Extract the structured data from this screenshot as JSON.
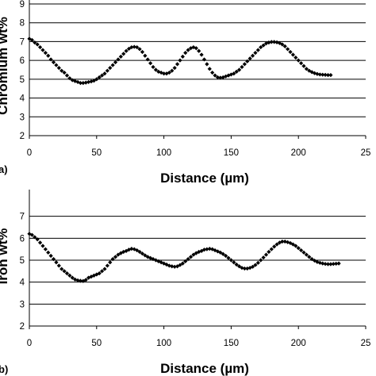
{
  "chart_data": [
    {
      "type": "scatter",
      "panel_label": "a)",
      "ylabel": "Chromium wt%",
      "xlabel": "Distance (µm)",
      "xlim": [
        0,
        250
      ],
      "ylim": [
        2,
        9
      ],
      "xticks": [
        "0",
        "50",
        "100",
        "150",
        "200",
        "25"
      ],
      "yticks": [
        "2",
        "3",
        "4",
        "5",
        "6",
        "7",
        "8",
        "9"
      ],
      "grid": true,
      "series": [
        {
          "marker": "diamond",
          "color": "#000000",
          "x": [
            0,
            2,
            4,
            6,
            8,
            10,
            12,
            14,
            16,
            18,
            20,
            22,
            24,
            26,
            28,
            30,
            32,
            34,
            36,
            38,
            40,
            42,
            44,
            46,
            48,
            50,
            52,
            54,
            56,
            58,
            60,
            62,
            64,
            66,
            68,
            70,
            72,
            74,
            76,
            78,
            80,
            82,
            84,
            86,
            88,
            90,
            92,
            94,
            96,
            98,
            100,
            102,
            104,
            106,
            108,
            110,
            112,
            114,
            116,
            118,
            120,
            122,
            124,
            126,
            128,
            130,
            132,
            134,
            136,
            138,
            140,
            142,
            144,
            146,
            148,
            150,
            152,
            154,
            156,
            158,
            160,
            162,
            164,
            166,
            168,
            170,
            172,
            174,
            176,
            178,
            180,
            182,
            184,
            186,
            188,
            190,
            192,
            194,
            196,
            198,
            200,
            202,
            204,
            206,
            208,
            210,
            212,
            214,
            216,
            218,
            220,
            222,
            224
          ],
          "y": [
            7.15,
            7.08,
            6.95,
            6.85,
            6.7,
            6.55,
            6.4,
            6.25,
            6.05,
            5.9,
            5.75,
            5.6,
            5.45,
            5.35,
            5.2,
            5.05,
            4.95,
            4.9,
            4.85,
            4.8,
            4.8,
            4.82,
            4.85,
            4.88,
            4.92,
            5.0,
            5.1,
            5.2,
            5.3,
            5.45,
            5.6,
            5.75,
            5.9,
            6.05,
            6.2,
            6.35,
            6.5,
            6.62,
            6.7,
            6.72,
            6.7,
            6.6,
            6.45,
            6.25,
            6.05,
            5.85,
            5.65,
            5.5,
            5.4,
            5.35,
            5.3,
            5.3,
            5.35,
            5.45,
            5.6,
            5.8,
            6.0,
            6.2,
            6.4,
            6.55,
            6.65,
            6.7,
            6.65,
            6.5,
            6.3,
            6.05,
            5.8,
            5.55,
            5.35,
            5.2,
            5.1,
            5.08,
            5.1,
            5.15,
            5.2,
            5.25,
            5.3,
            5.4,
            5.5,
            5.65,
            5.8,
            5.95,
            6.1,
            6.25,
            6.4,
            6.55,
            6.7,
            6.8,
            6.9,
            6.95,
            6.98,
            6.98,
            6.96,
            6.92,
            6.85,
            6.75,
            6.6,
            6.45,
            6.3,
            6.15,
            6.0,
            5.85,
            5.7,
            5.55,
            5.45,
            5.38,
            5.32,
            5.28,
            5.25,
            5.24,
            5.23,
            5.22,
            5.22
          ]
        }
      ]
    },
    {
      "type": "scatter",
      "panel_label": "b)",
      "ylabel": "Iron wt%",
      "xlabel": "Distance (µm)",
      "xlim": [
        0,
        250
      ],
      "ylim": [
        2,
        8
      ],
      "xticks": [
        "0",
        "50",
        "100",
        "150",
        "200",
        "25"
      ],
      "yticks": [
        "2",
        "3",
        "4",
        "5",
        "6",
        "7"
      ],
      "grid": true,
      "series": [
        {
          "marker": "diamond",
          "color": "#000000",
          "x": [
            0,
            2,
            4,
            6,
            8,
            10,
            12,
            14,
            16,
            18,
            20,
            22,
            24,
            26,
            28,
            30,
            32,
            34,
            36,
            38,
            40,
            42,
            44,
            46,
            48,
            50,
            52,
            54,
            56,
            58,
            60,
            62,
            64,
            66,
            68,
            70,
            72,
            74,
            76,
            78,
            80,
            82,
            84,
            86,
            88,
            90,
            92,
            94,
            96,
            98,
            100,
            102,
            104,
            106,
            108,
            110,
            112,
            114,
            116,
            118,
            120,
            122,
            124,
            126,
            128,
            130,
            132,
            134,
            136,
            138,
            140,
            142,
            144,
            146,
            148,
            150,
            152,
            154,
            156,
            158,
            160,
            162,
            164,
            166,
            168,
            170,
            172,
            174,
            176,
            178,
            180,
            182,
            184,
            186,
            188,
            190,
            192,
            194,
            196,
            198,
            200,
            202,
            204,
            206,
            208,
            210,
            212,
            214,
            216,
            218,
            220,
            222,
            224,
            226,
            228,
            230
          ],
          "y": [
            6.2,
            6.15,
            6.05,
            5.95,
            5.8,
            5.65,
            5.5,
            5.35,
            5.2,
            5.05,
            4.9,
            4.75,
            4.6,
            4.5,
            4.4,
            4.3,
            4.2,
            4.12,
            4.08,
            4.06,
            4.05,
            4.1,
            4.2,
            4.25,
            4.3,
            4.35,
            4.4,
            4.5,
            4.6,
            4.75,
            4.9,
            5.05,
            5.15,
            5.25,
            5.32,
            5.38,
            5.42,
            5.48,
            5.52,
            5.5,
            5.45,
            5.38,
            5.3,
            5.22,
            5.15,
            5.1,
            5.05,
            5.0,
            4.95,
            4.9,
            4.85,
            4.8,
            4.75,
            4.72,
            4.7,
            4.72,
            4.78,
            4.85,
            4.95,
            5.05,
            5.15,
            5.25,
            5.32,
            5.38,
            5.42,
            5.48,
            5.5,
            5.52,
            5.5,
            5.45,
            5.4,
            5.35,
            5.28,
            5.2,
            5.1,
            5.0,
            4.9,
            4.8,
            4.72,
            4.65,
            4.62,
            4.62,
            4.65,
            4.7,
            4.78,
            4.88,
            5.0,
            5.12,
            5.25,
            5.38,
            5.5,
            5.62,
            5.72,
            5.8,
            5.85,
            5.85,
            5.82,
            5.78,
            5.72,
            5.65,
            5.55,
            5.45,
            5.35,
            5.25,
            5.15,
            5.05,
            4.98,
            4.92,
            4.88,
            4.85,
            4.83,
            4.82,
            4.82,
            4.83,
            4.84,
            4.85
          ]
        }
      ]
    }
  ]
}
